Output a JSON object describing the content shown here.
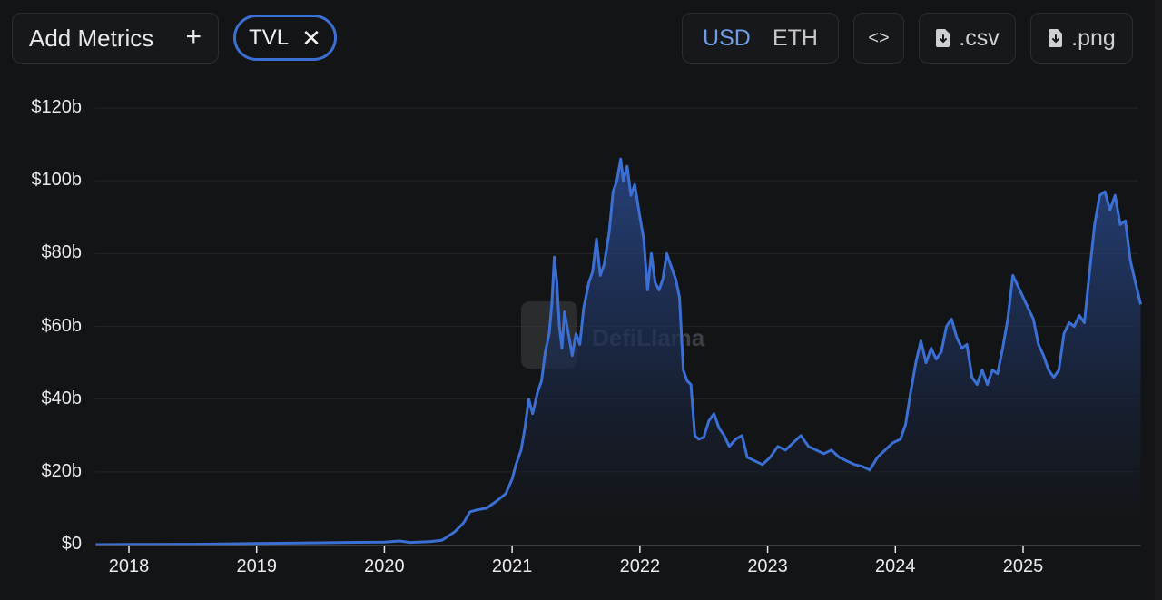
{
  "toolbar": {
    "add_metrics_label": "Add Metrics",
    "add_icon": "plus-icon",
    "active_metric": "TVL",
    "remove_icon": "close-icon",
    "currency_options": [
      "USD",
      "ETH"
    ],
    "currency_selected": "USD",
    "embed_icon": "code-icon",
    "embed_label": "<>",
    "csv_label": ".csv",
    "png_label": ".png",
    "download_icon": "file-download-icon"
  },
  "colors": {
    "background": "#131416",
    "line": "#3b6fd4",
    "accent": "#6f9ee6",
    "chip_border": "#3b6fd4",
    "grid": "#222427",
    "watermark": "#3a3c40"
  },
  "watermark": "DefiLlama",
  "chart_data": {
    "type": "area",
    "title": "",
    "series_name": "TVL",
    "xlabel": "",
    "ylabel": "",
    "y_unit": "USD billions",
    "ylim": [
      0,
      120
    ],
    "yticks": [
      0,
      20,
      40,
      60,
      80,
      100,
      120
    ],
    "ytick_labels": [
      "$0",
      "$20b",
      "$40b",
      "$60b",
      "$80b",
      "$100b",
      "$120b"
    ],
    "xticks": [
      2018,
      2019,
      2020,
      2021,
      2022,
      2023,
      2024,
      2025
    ],
    "xtick_labels": [
      "2018",
      "2019",
      "2020",
      "2021",
      "2022",
      "2023",
      "2024",
      "2025"
    ],
    "xlim": [
      2017.74,
      2025.92
    ],
    "grid": true,
    "legend": false,
    "points": [
      [
        2017.74,
        0.0
      ],
      [
        2018.0,
        0.05
      ],
      [
        2018.5,
        0.1
      ],
      [
        2019.0,
        0.3
      ],
      [
        2019.5,
        0.5
      ],
      [
        2020.0,
        0.7
      ],
      [
        2020.12,
        1.0
      ],
      [
        2020.2,
        0.6
      ],
      [
        2020.35,
        0.8
      ],
      [
        2020.45,
        1.2
      ],
      [
        2020.55,
        3.5
      ],
      [
        2020.62,
        6.0
      ],
      [
        2020.67,
        9.0
      ],
      [
        2020.72,
        9.5
      ],
      [
        2020.8,
        10.0
      ],
      [
        2020.88,
        12.0
      ],
      [
        2020.95,
        14.0
      ],
      [
        2021.0,
        18.0
      ],
      [
        2021.03,
        22.0
      ],
      [
        2021.07,
        26.0
      ],
      [
        2021.1,
        32.0
      ],
      [
        2021.13,
        40.0
      ],
      [
        2021.16,
        36.0
      ],
      [
        2021.2,
        42.0
      ],
      [
        2021.23,
        45.0
      ],
      [
        2021.26,
        53.0
      ],
      [
        2021.29,
        58.0
      ],
      [
        2021.31,
        66.0
      ],
      [
        2021.33,
        79.0
      ],
      [
        2021.35,
        72.0
      ],
      [
        2021.37,
        60.0
      ],
      [
        2021.39,
        54.0
      ],
      [
        2021.41,
        64.0
      ],
      [
        2021.44,
        58.0
      ],
      [
        2021.47,
        52.0
      ],
      [
        2021.5,
        58.0
      ],
      [
        2021.53,
        55.0
      ],
      [
        2021.56,
        65.0
      ],
      [
        2021.6,
        72.0
      ],
      [
        2021.63,
        75.0
      ],
      [
        2021.66,
        84.0
      ],
      [
        2021.69,
        74.0
      ],
      [
        2021.72,
        77.0
      ],
      [
        2021.76,
        86.0
      ],
      [
        2021.79,
        97.0
      ],
      [
        2021.82,
        100.0
      ],
      [
        2021.85,
        106.0
      ],
      [
        2021.87,
        100.0
      ],
      [
        2021.9,
        104.0
      ],
      [
        2021.93,
        96.0
      ],
      [
        2021.96,
        99.0
      ],
      [
        2022.0,
        90.0
      ],
      [
        2022.03,
        84.0
      ],
      [
        2022.06,
        70.0
      ],
      [
        2022.09,
        80.0
      ],
      [
        2022.12,
        72.0
      ],
      [
        2022.15,
        70.0
      ],
      [
        2022.18,
        73.0
      ],
      [
        2022.21,
        80.0
      ],
      [
        2022.24,
        77.0
      ],
      [
        2022.28,
        73.0
      ],
      [
        2022.31,
        68.0
      ],
      [
        2022.34,
        48.0
      ],
      [
        2022.37,
        45.0
      ],
      [
        2022.4,
        44.0
      ],
      [
        2022.43,
        30.0
      ],
      [
        2022.46,
        29.0
      ],
      [
        2022.5,
        29.5
      ],
      [
        2022.54,
        34.0
      ],
      [
        2022.58,
        36.0
      ],
      [
        2022.62,
        32.0
      ],
      [
        2022.66,
        30.0
      ],
      [
        2022.7,
        27.0
      ],
      [
        2022.75,
        29.0
      ],
      [
        2022.8,
        30.0
      ],
      [
        2022.84,
        24.0
      ],
      [
        2022.9,
        23.0
      ],
      [
        2022.96,
        22.0
      ],
      [
        2023.02,
        24.0
      ],
      [
        2023.08,
        27.0
      ],
      [
        2023.14,
        26.0
      ],
      [
        2023.2,
        28.0
      ],
      [
        2023.26,
        30.0
      ],
      [
        2023.32,
        27.0
      ],
      [
        2023.38,
        26.0
      ],
      [
        2023.44,
        25.0
      ],
      [
        2023.5,
        26.0
      ],
      [
        2023.56,
        24.0
      ],
      [
        2023.62,
        23.0
      ],
      [
        2023.68,
        22.0
      ],
      [
        2023.74,
        21.5
      ],
      [
        2023.8,
        20.5
      ],
      [
        2023.86,
        24.0
      ],
      [
        2023.92,
        26.0
      ],
      [
        2023.98,
        28.0
      ],
      [
        2024.04,
        29.0
      ],
      [
        2024.08,
        33.0
      ],
      [
        2024.12,
        42.0
      ],
      [
        2024.16,
        50.0
      ],
      [
        2024.2,
        56.0
      ],
      [
        2024.24,
        50.0
      ],
      [
        2024.28,
        54.0
      ],
      [
        2024.32,
        51.0
      ],
      [
        2024.36,
        53.0
      ],
      [
        2024.4,
        60.0
      ],
      [
        2024.44,
        62.0
      ],
      [
        2024.48,
        57.0
      ],
      [
        2024.52,
        54.0
      ],
      [
        2024.56,
        55.0
      ],
      [
        2024.6,
        46.0
      ],
      [
        2024.64,
        44.0
      ],
      [
        2024.68,
        48.0
      ],
      [
        2024.72,
        44.0
      ],
      [
        2024.76,
        48.0
      ],
      [
        2024.8,
        47.0
      ],
      [
        2024.84,
        54.0
      ],
      [
        2024.88,
        62.0
      ],
      [
        2024.92,
        74.0
      ],
      [
        2024.96,
        71.0
      ],
      [
        2025.0,
        68.0
      ],
      [
        2025.04,
        65.0
      ],
      [
        2025.08,
        62.0
      ],
      [
        2025.12,
        55.0
      ],
      [
        2025.16,
        52.0
      ],
      [
        2025.2,
        48.0
      ],
      [
        2025.24,
        46.0
      ],
      [
        2025.28,
        48.0
      ],
      [
        2025.32,
        58.0
      ],
      [
        2025.36,
        61.0
      ],
      [
        2025.4,
        60.0
      ],
      [
        2025.44,
        63.0
      ],
      [
        2025.48,
        61.0
      ],
      [
        2025.52,
        75.0
      ],
      [
        2025.56,
        88.0
      ],
      [
        2025.6,
        96.0
      ],
      [
        2025.64,
        97.0
      ],
      [
        2025.68,
        92.0
      ],
      [
        2025.72,
        96.0
      ],
      [
        2025.76,
        88.0
      ],
      [
        2025.8,
        89.0
      ],
      [
        2025.84,
        78.0
      ],
      [
        2025.88,
        72.0
      ],
      [
        2025.92,
        66.0
      ]
    ]
  }
}
